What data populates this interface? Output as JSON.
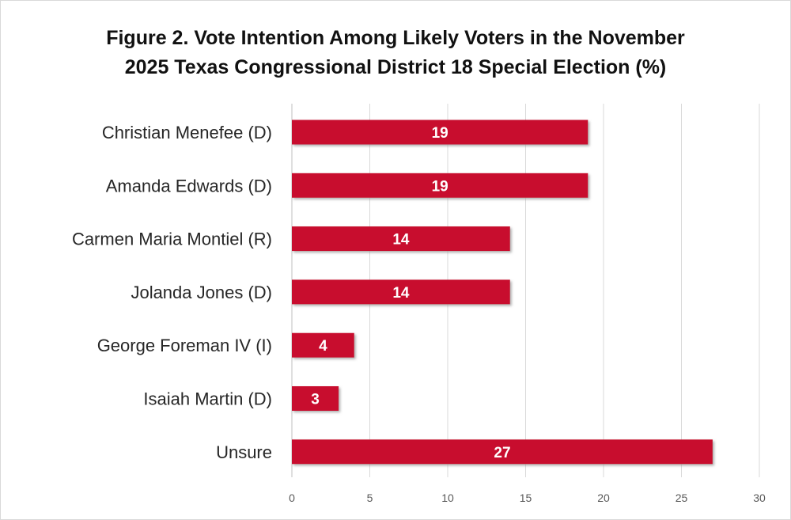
{
  "chart_data": {
    "type": "bar",
    "orientation": "horizontal",
    "title_lines": [
      "Figure 2. Vote Intention Among Likely Voters in the November",
      "2025 Texas Congressional District 18 Special Election (%)"
    ],
    "categories": [
      "Christian Menefee (D)",
      "Amanda Edwards (D)",
      "Carmen Maria Montiel (R)",
      "Jolanda Jones (D)",
      "George Foreman IV (I)",
      "Isaiah Martin (D)",
      "Unsure"
    ],
    "values": [
      19,
      19,
      14,
      14,
      4,
      3,
      27
    ],
    "data_labels": [
      "19",
      "19",
      "14",
      "14",
      "4",
      "3",
      "27"
    ],
    "xlim": [
      0,
      30
    ],
    "x_ticks": [
      "0",
      "5",
      "10",
      "15",
      "20",
      "25",
      "30"
    ],
    "xlabel": "",
    "ylabel": "",
    "grid": "vertical",
    "legend": "none",
    "colors": {
      "bar": "#c8102e",
      "bar_shadow": "#9a9a9a",
      "grid": "#d9d9d9",
      "axis": "#bfbfbf"
    }
  }
}
